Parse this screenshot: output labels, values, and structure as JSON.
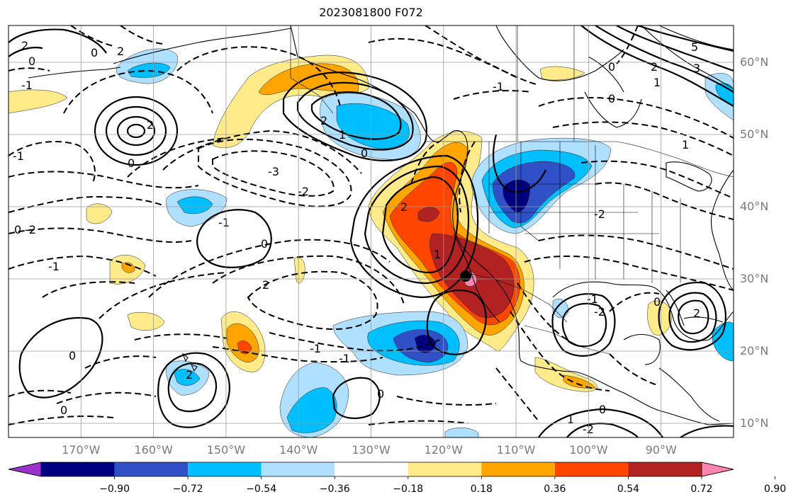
{
  "title": "2023081800 F072",
  "lat_labels": [
    {
      "text": "60°N",
      "lat": 60
    },
    {
      "text": "50°N",
      "lat": 50
    },
    {
      "text": "40°N",
      "lat": 40
    },
    {
      "text": "30°N",
      "lat": 30
    },
    {
      "text": "20°N",
      "lat": 20
    },
    {
      "text": "10°N",
      "lat": 10
    }
  ],
  "lon_labels": [
    {
      "text": "170°W",
      "lon": -170
    },
    {
      "text": "160°W",
      "lon": -160
    },
    {
      "text": "150°W",
      "lon": -150
    },
    {
      "text": "140°W",
      "lon": -140
    },
    {
      "text": "130°W",
      "lon": -130
    },
    {
      "text": "120°W",
      "lon": -120
    },
    {
      "text": "110°W",
      "lon": -110
    },
    {
      "text": "100°W",
      "lon": -100
    },
    {
      "text": "90°W",
      "lon": -90
    }
  ],
  "colorbar": {
    "colors": [
      "#9932cc",
      "#000080",
      "#3050c8",
      "#00bfff",
      "#b0e0ff",
      "#ffffff",
      "#ffeb8a",
      "#ffa500",
      "#ff4500",
      "#b22222",
      "#ff85b0"
    ],
    "tick_labels": [
      "−0.90",
      "−0.72",
      "−0.54",
      "−0.36",
      "−0.18",
      "0.18",
      "0.36",
      "0.54",
      "0.72",
      "0.90"
    ]
  },
  "contour_labels": [
    "2",
    "0",
    "-1",
    "2",
    "0",
    "-1",
    "-3",
    "-2",
    "2",
    "1",
    "0",
    "0",
    "2",
    "-1",
    "0",
    "-2",
    "-1",
    "2",
    "1",
    "0",
    "5",
    "2",
    "3",
    "1",
    "0",
    "1",
    "-1",
    "0",
    "2",
    "0",
    "-1",
    "-2",
    "2",
    "0",
    "2",
    "0",
    "-1",
    "-1",
    "0",
    "-2",
    "1",
    "-2",
    "0"
  ],
  "colors": {
    "land_line": "#000000",
    "grid": "#9a9a9a",
    "tick_text": "#7a7a7a"
  }
}
